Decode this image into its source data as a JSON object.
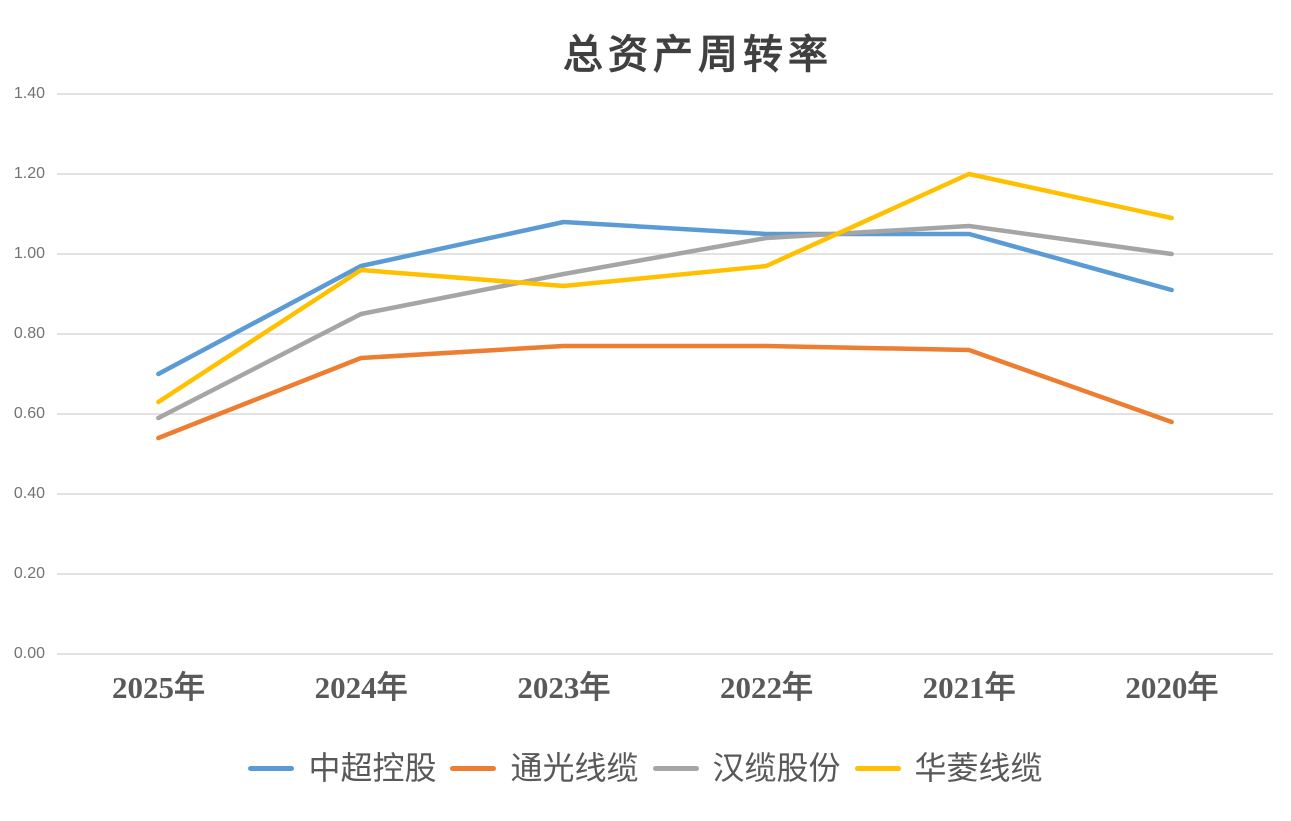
{
  "chart_data": {
    "type": "line",
    "title": "总资产周转率",
    "categories": [
      "2025年",
      "2024年",
      "2023年",
      "2022年",
      "2021年",
      "2020年"
    ],
    "series": [
      {
        "name": "中超控股",
        "color": "#5B9BD5",
        "values": [
          0.7,
          0.97,
          1.08,
          1.05,
          1.05,
          0.91
        ]
      },
      {
        "name": "通光线缆",
        "color": "#ED7D31",
        "values": [
          0.54,
          0.74,
          0.77,
          0.77,
          0.76,
          0.58
        ]
      },
      {
        "name": "汉缆股份",
        "color": "#A5A5A5",
        "values": [
          0.59,
          0.85,
          0.95,
          1.04,
          1.07,
          1.0
        ]
      },
      {
        "name": "华菱线缆",
        "color": "#FFC000",
        "values": [
          0.63,
          0.96,
          0.92,
          0.97,
          1.2,
          1.09
        ]
      }
    ],
    "y_ticks": [
      "1.40",
      "1.20",
      "1.00",
      "0.80",
      "0.60",
      "0.40",
      "0.20",
      "0.00"
    ],
    "ylim": [
      0.0,
      1.4
    ],
    "grid": true,
    "legend_position": "bottom",
    "colors": {
      "gridline": "#D9D9D9",
      "y_tick_label": "#737373",
      "x_category_label": "#595959",
      "title": "#404040",
      "legend_label": "#595959",
      "background": "#FFFFFF"
    }
  }
}
